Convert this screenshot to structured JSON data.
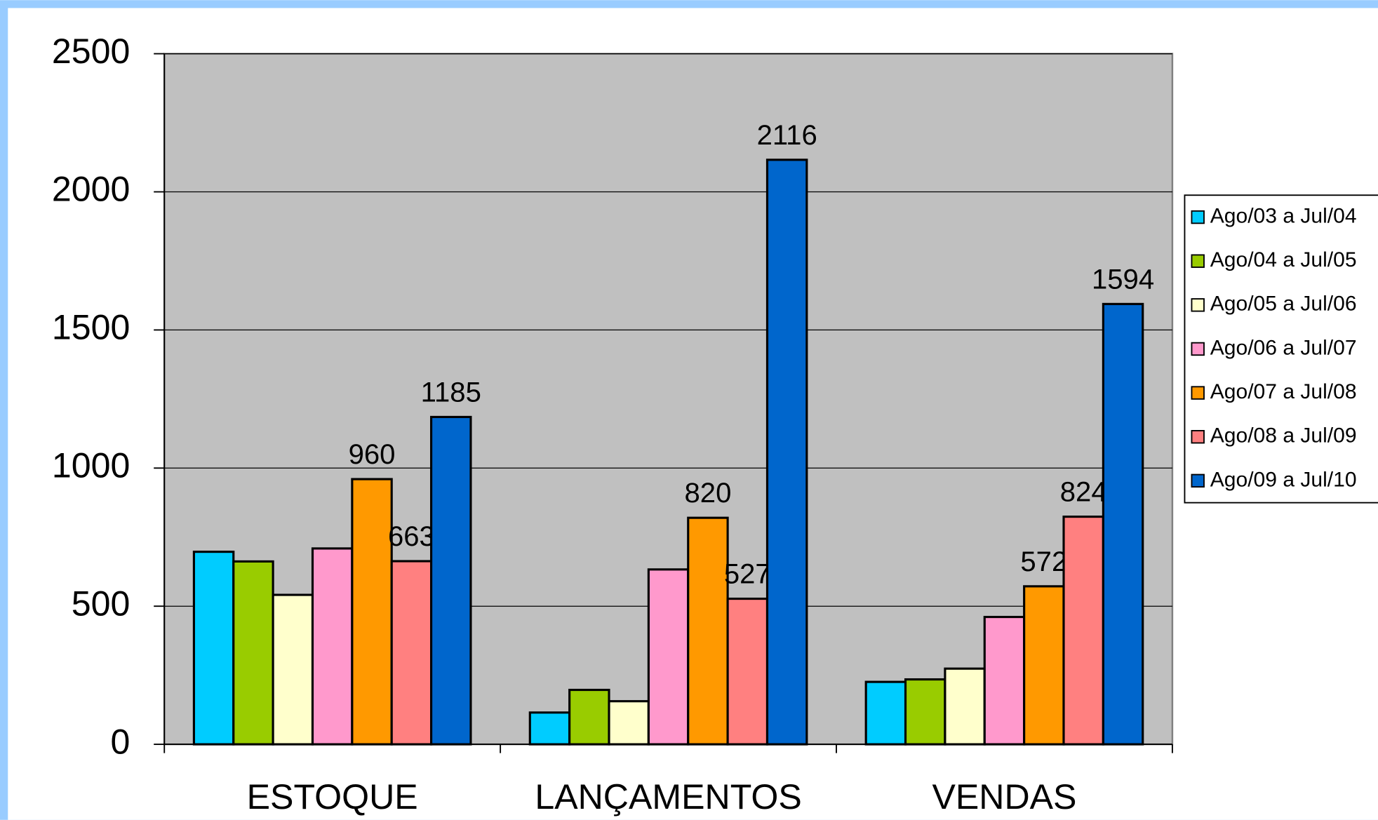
{
  "chart_data": {
    "type": "bar",
    "categories": [
      "ESTOQUE",
      "LANÇAMENTOS",
      "VENDAS"
    ],
    "series": [
      {
        "name": "Ago/03 a Jul/04",
        "color": "#00CCFF",
        "values": [
          697,
          115,
          226
        ]
      },
      {
        "name": "Ago/04 a Jul/05",
        "color": "#99CC00",
        "values": [
          662,
          197,
          235
        ]
      },
      {
        "name": "Ago/05 a Jul/06",
        "color": "#FFFFCC",
        "values": [
          541,
          156,
          274
        ]
      },
      {
        "name": "Ago/06 a Jul/07",
        "color": "#FF99CC",
        "values": [
          709,
          633,
          461
        ]
      },
      {
        "name": "Ago/07 a Jul/08",
        "color": "#FF9900",
        "values": [
          960,
          820,
          572
        ],
        "labels": true
      },
      {
        "name": "Ago/08 a Jul/09",
        "color": "#FF8080",
        "values": [
          663,
          527,
          824
        ],
        "labels": true
      },
      {
        "name": "Ago/09 a Jul/10",
        "color": "#0066CC",
        "values": [
          1185,
          2116,
          1594
        ],
        "labels": true
      }
    ],
    "ylim": [
      0,
      2500
    ],
    "yticks": [
      0,
      500,
      1000,
      1500,
      2000,
      2500
    ],
    "grid": true,
    "legend": "right"
  }
}
